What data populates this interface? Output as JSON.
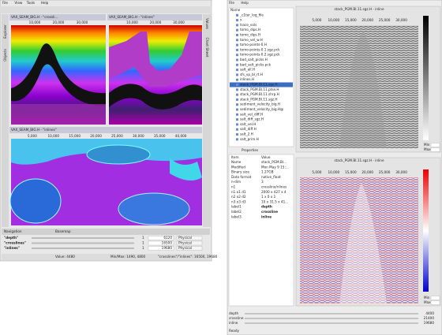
{
  "left_window": {
    "menu": [
      "File",
      "View",
      "Tools",
      "Help"
    ],
    "side_tabs": [
      "Explorer",
      "Objects"
    ],
    "right_tabs": [
      "Values",
      "Chart Sheet"
    ],
    "views": [
      {
        "title": "VAX_SEAM_BIG.H - \"crossli...",
        "ticks": [
          "10,000",
          "20,000",
          "30,000"
        ]
      },
      {
        "title": "VAX_SEAM_BIG.H - \"inlines\"",
        "ticks": [
          "10,000",
          "20,000",
          "30,000"
        ]
      },
      {
        "title": "VAX_SEAM_BIG.H - \"inlines\"",
        "ticks": [
          "5,000",
          "10,000",
          "15,000",
          "20,000",
          "25,000",
          "30,000",
          "35,000",
          "40,000"
        ]
      }
    ],
    "navigation": {
      "title": "Navigation",
      "tab": "Basemap",
      "rows": [
        {
          "axis": "\"depth\"",
          "count": "1",
          "value": "6120",
          "mode": "Physical"
        },
        {
          "axis": "\"crosslines\"",
          "count": "1",
          "value": "16500",
          "mode": "Physical"
        },
        {
          "axis": "\"inlines\"",
          "count": "1",
          "value": "19680",
          "mode": "Physical"
        }
      ]
    },
    "status": [
      "Value: 4480",
      "Min/Max: 1490, 4800",
      "\"crosslines\"/\"inlines\": 16500, 19680"
    ]
  },
  "right_window": {
    "menu": [
      "File",
      "Help"
    ],
    "tree": [
      "Name",
      "_c1ter_log_file",
      "x",
      "trace_vols",
      "tomo_dips.H",
      "tomo_dips.H",
      "tomo_vel_w.H",
      "tomo-points-0.H",
      "tomo-points-0.1.sgz.pck",
      "tomo-points-0.2.sgz.pck",
      "bad_salt_picks.H",
      "bad_salt_picks.pck",
      "salt_all.H",
      "sfs_vp_bl_rt.H",
      "inlines.H",
      "stack_PGM.BI.11.sgz.H",
      "stack_PGM.BI.11.ptse.H",
      "stack_PGM.BI.11.shrp.H",
      "stack_PGM.BI.11.sgz.H",
      "sediment_velocity_big.H",
      "sediment_velocity_big.H@",
      "salt_vel_diff.H",
      "salt_diff_sgz.H",
      "salt_vel.H",
      "salt_diff.H",
      "salt_2.H",
      "salt_prim.H"
    ],
    "properties_tab": "Properties",
    "properties_header": [
      "Item",
      "Value"
    ],
    "properties": [
      [
        "Name",
        "stack_PGM.BI..."
      ],
      [
        "Modified",
        "Mon May 9 15:..."
      ],
      [
        "Binary size",
        "1.27GB"
      ],
      [
        "Data format",
        "native_float"
      ],
      [
        "n-dim",
        "3"
      ],
      [
        "n1",
        "crossline/nlines"
      ],
      [
        "n1 o1 d1",
        "2000 x 427 x 4"
      ],
      [
        "n2 o2 d2",
        "1 x 0 x 1"
      ],
      [
        "n3 o3 d3",
        "10 x 31.5 x 41..."
      ],
      [
        "label1",
        "depth"
      ],
      [
        "label2",
        "crossline"
      ],
      [
        "label3",
        "inline"
      ]
    ],
    "views": [
      {
        "title": "stack_PGM.BI.11.sgz.H - inline",
        "ticks": [
          "5,000",
          "10,000",
          "15,000",
          "20,000",
          "25,000",
          "30,000"
        ]
      },
      {
        "title": "stack_PGM.BI.11.sgz.H - inline",
        "ticks": [
          "5,000",
          "10,000",
          "15,000",
          "20,000",
          "25,000",
          "30,000"
        ]
      }
    ],
    "colorbar_labels": [
      "Min",
      "Max"
    ],
    "sliders": [
      {
        "name": "depth",
        "value": "4400"
      },
      {
        "name": "crossline",
        "value": "21400"
      },
      {
        "name": "inline",
        "value": "19680"
      }
    ],
    "status": "Ready"
  }
}
